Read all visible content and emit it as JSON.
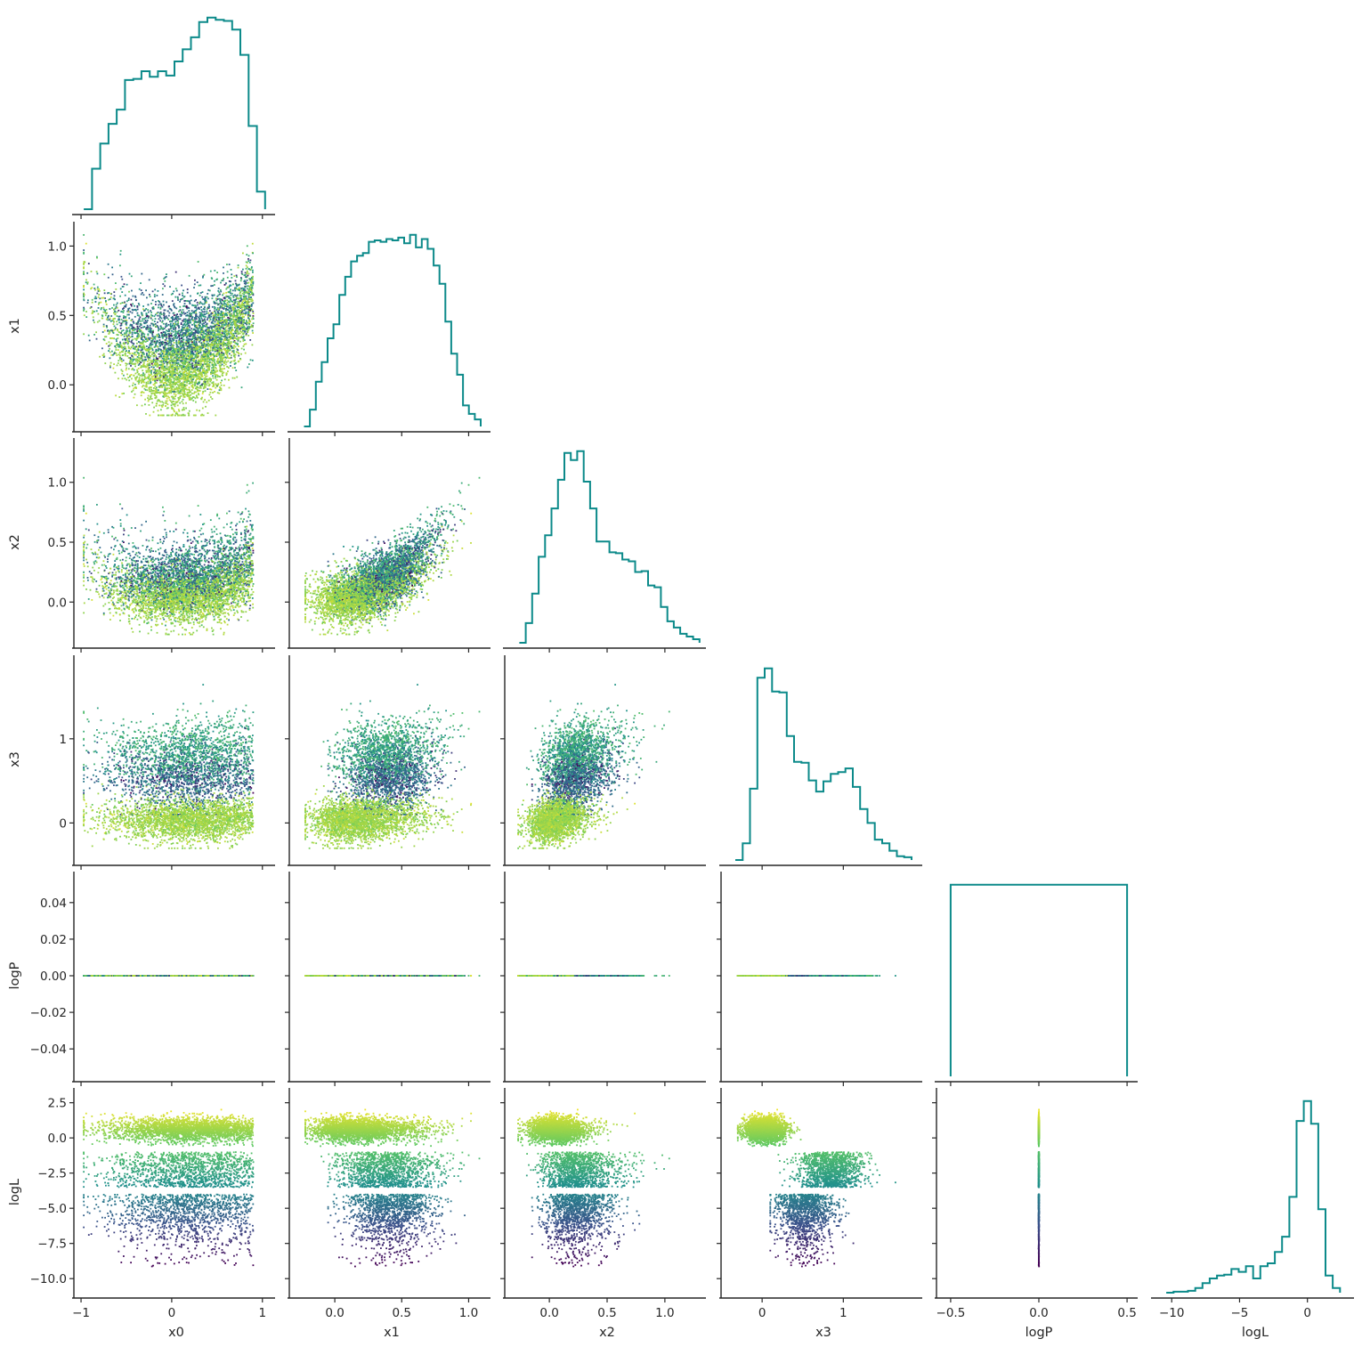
{
  "colors": {
    "histogram": "#0c8a8a",
    "axis": "#262626",
    "colormap": [
      "#440154",
      "#3b528b",
      "#21918c",
      "#5ec962",
      "#fde725"
    ]
  },
  "chart_data": {
    "type": "scatter",
    "layout": "corner",
    "variables": [
      "x0",
      "x1",
      "x2",
      "x3",
      "logP",
      "logL"
    ],
    "color_by": "logL",
    "axes": {
      "x0": {
        "range": [
          -1.02,
          1.12
        ],
        "ticks": [
          -1,
          0,
          1
        ],
        "tick_labels": [
          "−1",
          "0",
          "1"
        ]
      },
      "x1": {
        "range": [
          -0.3,
          1.15
        ],
        "ticks": [
          0.0,
          0.5,
          1.0
        ],
        "tick_labels": [
          "0.0",
          "0.5",
          "1.0"
        ]
      },
      "x2": {
        "range": [
          -0.34,
          1.34
        ],
        "ticks": [
          0.0,
          0.5,
          1.0
        ],
        "tick_labels": [
          "0.0",
          "0.5",
          "1.0"
        ]
      },
      "x3": {
        "range": [
          -0.44,
          1.95
        ],
        "ticks": [
          0,
          1
        ],
        "tick_labels": [
          "0",
          "1"
        ]
      },
      "logP": {
        "range": [
          -0.055,
          0.055
        ],
        "xrange": [
          -0.55,
          0.55
        ],
        "ticks": [
          -0.04,
          -0.02,
          0.0,
          0.02,
          0.04
        ],
        "tick_labels": [
          "−0.04",
          "−0.02",
          "0.00",
          "0.02",
          "0.04"
        ],
        "xticks": [
          -0.5,
          0.0,
          0.5
        ],
        "xtick_labels": [
          "−0.5",
          "0.0",
          "0.5"
        ]
      },
      "logL": {
        "range": [
          -11.0,
          3.3
        ],
        "ticks": [
          -10.0,
          -7.5,
          -5.0,
          -2.5,
          0.0,
          2.5
        ],
        "tick_labels": [
          "−10.0",
          "−7.5",
          "−5.0",
          "−2.5",
          "0.0",
          "2.5"
        ],
        "xticks": [
          -10,
          -5,
          0
        ],
        "xtick_labels": [
          "−10",
          "−5",
          "0"
        ]
      }
    },
    "histograms": {
      "x0": {
        "edges_range": [
          -0.97,
          1.03
        ],
        "counts": [
          0,
          37,
          60,
          78,
          91,
          118,
          119,
          126,
          121,
          126,
          122,
          135,
          146,
          157,
          171,
          175,
          173,
          172,
          164,
          141,
          76,
          16
        ]
      },
      "x1": {
        "edges_range": [
          -0.23,
          1.09
        ],
        "counts": [
          0,
          12,
          32,
          46,
          63,
          73,
          94,
          107,
          118,
          122,
          124,
          132,
          133,
          132,
          134,
          133,
          135,
          131,
          137,
          128,
          134,
          127,
          115,
          102,
          75,
          52,
          37,
          15,
          9,
          5
        ]
      },
      "x2": {
        "edges_range": [
          -0.26,
          1.3
        ],
        "counts": [
          0,
          22,
          55,
          96,
          120,
          150,
          182,
          212,
          204,
          214,
          180,
          150,
          113,
          113,
          101,
          100,
          93,
          91,
          79,
          80,
          64,
          62,
          40,
          24,
          17,
          10,
          7,
          4
        ]
      },
      "x3": {
        "edges_range": [
          -0.33,
          1.84
        ],
        "counts": [
          0,
          18,
          77,
          197,
          207,
          182,
          181,
          134,
          106,
          105,
          86,
          74,
          85,
          93,
          95,
          99,
          79,
          55,
          40,
          22,
          18,
          10,
          4,
          3
        ]
      },
      "logP": {
        "edges_range": [
          -0.5,
          0.5
        ],
        "counts": [
          1
        ]
      },
      "logL": {
        "edges_range": [
          -10.4,
          2.4
        ],
        "counts": [
          0,
          1,
          1,
          2,
          5,
          10,
          15,
          18,
          19,
          25,
          22,
          28,
          15,
          28,
          31,
          43,
          59,
          101,
          181,
          202,
          178,
          88,
          18,
          5
        ]
      }
    },
    "point_cloud": {
      "approx_points": 5200,
      "clusters": [
        {
          "mode": "upper",
          "weight": 0.5,
          "logL_range": [
            -0.6,
            2.3
          ]
        },
        {
          "mode": "middle-branch",
          "weight": 0.25,
          "logL_range": [
            -3.5,
            -1.0
          ]
        },
        {
          "mode": "lower",
          "weight": 0.25,
          "logL_range": [
            -9.0,
            -4.0
          ]
        }
      ]
    }
  }
}
